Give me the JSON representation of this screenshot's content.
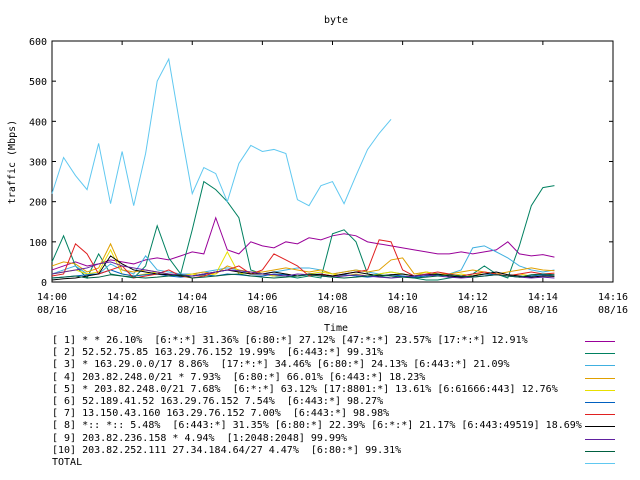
{
  "chart_data": {
    "type": "line",
    "title": "byte",
    "xlabel": "Time",
    "ylabel": "traffic (Mbps)",
    "ylim": [
      0,
      600
    ],
    "yticks": [
      0,
      100,
      200,
      300,
      400,
      500,
      600
    ],
    "xlim": [
      0,
      16
    ],
    "xticks": [
      {
        "min": 0,
        "time": "14:00",
        "date": "08/16"
      },
      {
        "min": 2,
        "time": "14:02",
        "date": "08/16"
      },
      {
        "min": 4,
        "time": "14:04",
        "date": "08/16"
      },
      {
        "min": 6,
        "time": "14:06",
        "date": "08/16"
      },
      {
        "min": 8,
        "time": "14:08",
        "date": "08/16"
      },
      {
        "min": 10,
        "time": "14:10",
        "date": "08/16"
      },
      {
        "min": 12,
        "time": "14:12",
        "date": "08/16"
      },
      {
        "min": 14,
        "time": "14:14",
        "date": "08/16"
      },
      {
        "min": 16,
        "time": "14:16",
        "date": "08/16"
      }
    ],
    "x": [
      0,
      0.33,
      0.67,
      1,
      1.33,
      1.67,
      2,
      2.33,
      2.67,
      3,
      3.33,
      3.67,
      4,
      4.33,
      4.67,
      5,
      5.33,
      5.67,
      6,
      6.33,
      6.67,
      7,
      7.33,
      7.67,
      8,
      8.33,
      8.67,
      9,
      9.33,
      9.67,
      10,
      10.33,
      10.67,
      11,
      11.33,
      11.67,
      12,
      12.33,
      12.67,
      13,
      13.33,
      13.67,
      14,
      14.33
    ],
    "grid": false,
    "series": [
      {
        "name": "[ 1] * * 26.10%  [6:*:*] 31.36% [6:80:*] 27.12% [47:*:*] 23.57% [17:*:*] 12.91%",
        "color": "#990099",
        "values": [
          30,
          40,
          50,
          40,
          45,
          55,
          50,
          45,
          55,
          60,
          55,
          65,
          75,
          70,
          160,
          80,
          70,
          100,
          90,
          85,
          100,
          95,
          110,
          105,
          115,
          120,
          115,
          100,
          95,
          90,
          85,
          80,
          75,
          70,
          70,
          75,
          70,
          75,
          80,
          100,
          70,
          65,
          68,
          62
        ]
      },
      {
        "name": "[ 2] 52.52.75.85 163.29.76.152 19.99%  [6:443:*] 99.31%",
        "color": "#008060",
        "values": [
          50,
          115,
          40,
          10,
          70,
          20,
          15,
          10,
          40,
          140,
          60,
          20,
          130,
          250,
          230,
          200,
          160,
          30,
          20,
          15,
          15,
          10,
          15,
          10,
          120,
          130,
          100,
          20,
          15,
          10,
          15,
          10,
          5,
          5,
          10,
          15,
          20,
          40,
          20,
          10,
          90,
          190,
          235,
          240
        ]
      },
      {
        "name": "[ 3] * 163.29.0.0/17 8.86%  [17:*:*] 34.46% [6:80:*] 24.13% [6:443:*] 21.09%",
        "color": "#40b0e0",
        "values": [
          20,
          30,
          40,
          20,
          20,
          45,
          30,
          20,
          65,
          30,
          25,
          20,
          20,
          25,
          30,
          35,
          30,
          20,
          20,
          25,
          30,
          35,
          35,
          30,
          20,
          25,
          30,
          25,
          20,
          25,
          20,
          15,
          25,
          20,
          20,
          30,
          85,
          90,
          75,
          60,
          40,
          30,
          25,
          30
        ]
      },
      {
        "name": "[ 4] 203.82.248.0/21 * 7.93%  [6:80:*] 66.01% [6:443:*] 18.23%",
        "color": "#e0a000",
        "values": [
          40,
          50,
          45,
          25,
          35,
          95,
          30,
          25,
          30,
          25,
          20,
          15,
          20,
          25,
          20,
          40,
          30,
          25,
          25,
          30,
          35,
          30,
          25,
          30,
          20,
          25,
          30,
          25,
          30,
          55,
          60,
          20,
          25,
          20,
          20,
          25,
          30,
          25,
          20,
          25,
          30,
          35,
          30,
          28
        ]
      },
      {
        "name": "[ 5] * 203.82.248.0/21 7.68%  [6:*:*] 63.12% [17:8801:*] 13.61% [6:61666:443] 12.76%",
        "color": "#e8e000",
        "values": [
          20,
          25,
          30,
          20,
          25,
          80,
          20,
          15,
          20,
          25,
          20,
          15,
          20,
          15,
          20,
          75,
          20,
          25,
          20,
          15,
          20,
          15,
          20,
          25,
          20,
          15,
          20,
          15,
          20,
          25,
          20,
          15,
          25,
          20,
          15,
          20,
          15,
          25,
          20,
          15,
          20,
          15,
          20,
          15
        ]
      },
      {
        "name": "[ 6] 52.189.41.52 163.29.76.152 7.54%  [6:443:*] 98.27%",
        "color": "#0060c0",
        "values": [
          10,
          12,
          15,
          18,
          20,
          30,
          20,
          15,
          18,
          20,
          15,
          12,
          15,
          18,
          15,
          20,
          18,
          15,
          15,
          20,
          18,
          15,
          18,
          20,
          15,
          18,
          15,
          12,
          15,
          18,
          15,
          12,
          15,
          18,
          15,
          12,
          15,
          20,
          18,
          15,
          12,
          15,
          18,
          15
        ]
      },
      {
        "name": "[ 7] 13.150.43.160 163.29.76.152 7.00%  [6:443:*] 98.98%",
        "color": "#e02020",
        "values": [
          15,
          20,
          95,
          70,
          20,
          30,
          40,
          10,
          15,
          20,
          30,
          15,
          10,
          15,
          25,
          30,
          40,
          20,
          30,
          70,
          55,
          40,
          15,
          20,
          15,
          20,
          25,
          30,
          105,
          100,
          30,
          15,
          20,
          25,
          20,
          15,
          20,
          25,
          20,
          15,
          20,
          25,
          20,
          22
        ]
      },
      {
        "name": "[ 8] *:: *:: 5.48%  [6:443:*] 31.35% [6:80:*] 22.39% [6:*:*] 21.17% [6:443:49519] 18.69%",
        "color": "#000000",
        "values": [
          5,
          8,
          10,
          15,
          20,
          65,
          45,
          30,
          25,
          20,
          18,
          15,
          15,
          20,
          25,
          30,
          25,
          20,
          20,
          25,
          20,
          15,
          20,
          18,
          15,
          20,
          25,
          20,
          15,
          18,
          20,
          15,
          18,
          20,
          15,
          12,
          15,
          20,
          25,
          18,
          15,
          12,
          15,
          14
        ]
      },
      {
        "name": "[ 9] 203.82.236.158 * 4.94%  [1:2048:2048] 99.99%",
        "color": "#6020a0",
        "values": [
          20,
          25,
          30,
          35,
          45,
          50,
          40,
          35,
          30,
          25,
          20,
          18,
          15,
          20,
          25,
          30,
          28,
          25,
          20,
          18,
          15,
          20,
          18,
          15,
          12,
          15,
          18,
          15,
          12,
          10,
          12,
          15,
          18,
          15,
          12,
          10,
          12,
          15,
          18,
          15,
          12,
          10,
          12,
          10
        ]
      },
      {
        "name": "[10] 203.82.252.111 27.34.184.64/27 4.47%  [6:80:*] 99.31%",
        "color": "#006040",
        "values": [
          10,
          12,
          15,
          10,
          12,
          18,
          15,
          12,
          10,
          12,
          15,
          18,
          10,
          12,
          15,
          18,
          20,
          15,
          12,
          10,
          12,
          15,
          18,
          15,
          12,
          10,
          12,
          15,
          18,
          15,
          12,
          10,
          12,
          15,
          18,
          15,
          12,
          15,
          18,
          15,
          12,
          18,
          20,
          18
        ]
      },
      {
        "name": "TOTAL",
        "color": "#60c8f0",
        "values": [
          220,
          310,
          265,
          230,
          345,
          195,
          325,
          190,
          320,
          500,
          555,
          380,
          220,
          285,
          270,
          200,
          295,
          340,
          325,
          330,
          320,
          205,
          190,
          240,
          250,
          195,
          265,
          330,
          370,
          405,
          0,
          0,
          0,
          0,
          0,
          0,
          0,
          0,
          0,
          0,
          0,
          0,
          0,
          0
        ]
      }
    ],
    "legend_placement": "bottom"
  }
}
